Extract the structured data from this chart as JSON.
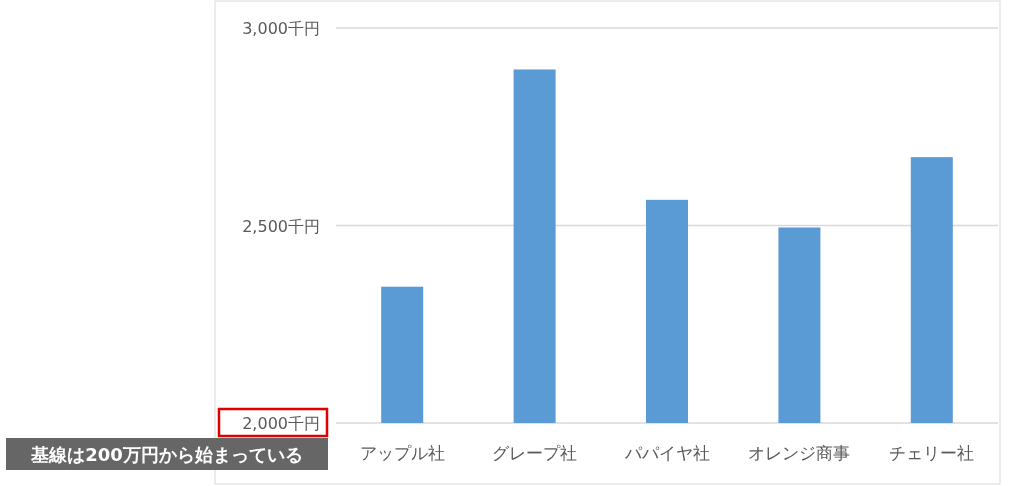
{
  "chart_data": {
    "type": "bar",
    "categories": [
      "アップル社",
      "グレープ社",
      "パパイヤ社",
      "オレンジ商事",
      "チェリー社"
    ],
    "values": [
      2345,
      2895,
      2565,
      2495,
      2673
    ],
    "color": "#5b9bd5",
    "ylim": [
      2000,
      3000
    ],
    "yticks": [
      {
        "value": 2000,
        "label": "2,000千円"
      },
      {
        "value": 2500,
        "label": "2,500千円"
      },
      {
        "value": 3000,
        "label": "3,000千円"
      }
    ],
    "grid": "y",
    "annotations": [
      "基線は200万円から始まっている"
    ]
  }
}
